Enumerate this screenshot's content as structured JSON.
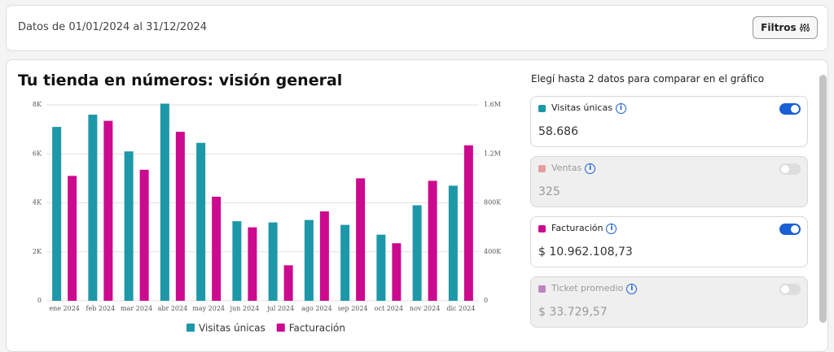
{
  "header": {
    "range": "Datos de 01/01/2024 al 31/12/2024",
    "button": "Filtros"
  },
  "chart_data": {
    "type": "bar",
    "title": "Tu tienda en números: visión general",
    "categories": [
      "ene 2024",
      "feb 2024",
      "mar 2024",
      "abr 2024",
      "may 2024",
      "jun 2024",
      "jul 2024",
      "ago 2024",
      "sep 2024",
      "oct 2024",
      "nov 2024",
      "dic 2024"
    ],
    "series": [
      {
        "name": "Visitas únicas",
        "color": "#1d98a8",
        "values": [
          7100,
          7600,
          6100,
          8050,
          6450,
          3250,
          3200,
          3300,
          3100,
          2700,
          3900,
          4700
        ]
      },
      {
        "name": "Facturación",
        "color": "#cc0a8f",
        "axis": "y2",
        "values": [
          1020000,
          1470000,
          1070000,
          1380000,
          850000,
          600000,
          290000,
          730000,
          1000000,
          470000,
          980000,
          1270000
        ]
      }
    ],
    "ylim": [
      0,
      8000
    ],
    "yticks": [
      0,
      {
        "value": 2000,
        "label": "2K"
      },
      {
        "value": 4000,
        "label": "4K"
      },
      {
        "value": 6000,
        "label": "6K"
      },
      {
        "value": 8000,
        "label": "8K"
      }
    ],
    "y2lim": [
      0,
      1600000
    ],
    "y2ticks": [
      0,
      {
        "value": 400000,
        "label": "400K"
      },
      {
        "value": 800000,
        "label": "800K"
      },
      {
        "value": 1200000,
        "label": "1.2M"
      },
      {
        "value": 1600000,
        "label": "1.6M"
      }
    ],
    "grid": true,
    "legend": "bottom"
  },
  "panel": {
    "heading": "Elegí hasta 2 datos para comparar en el gráfico",
    "metrics": [
      {
        "name": "Visitas únicas",
        "value": "58.686",
        "color": "#1d98a8",
        "enabled": true
      },
      {
        "name": "Ventas",
        "value": "325",
        "color": "#e06666",
        "enabled": false
      },
      {
        "name": "Facturación",
        "value": "$ 10.962.108,73",
        "color": "#cc0a8f",
        "enabled": true
      },
      {
        "name": "Ticket promedio",
        "value": "$ 33.729,57",
        "color": "#9b3d9e",
        "enabled": false
      }
    ]
  }
}
